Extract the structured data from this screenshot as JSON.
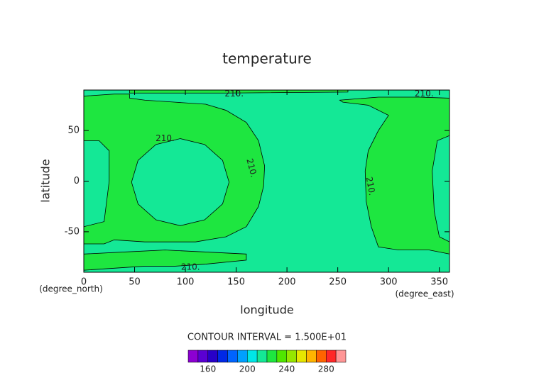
{
  "chart_data": {
    "type": "contour",
    "title": "temperature",
    "x_label": "longitude",
    "y_label": "latitude",
    "x_units": "(degree_east)",
    "y_units": "(degree_north)",
    "xlim": [
      0,
      360
    ],
    "ylim": [
      -90,
      90
    ],
    "xticks": [
      0,
      50,
      100,
      150,
      200,
      250,
      300,
      350
    ],
    "yticks": [
      -50,
      0,
      50
    ],
    "background_color": "#14e896",
    "contour_level": {
      "value": 210,
      "label": "210."
    },
    "regions": [
      {
        "color": "#1ee640",
        "lon": [
          0,
          30,
          45,
          45,
          60,
          90,
          120,
          140,
          160,
          172,
          178,
          177,
          172,
          160,
          140,
          110,
          60,
          30,
          20,
          0,
          0,
          20,
          25,
          25,
          15,
          0
        ],
        "lat": [
          84,
          86,
          86,
          82,
          80,
          78,
          76,
          70,
          58,
          40,
          15,
          -5,
          -25,
          -45,
          -55,
          -60,
          -60,
          -58,
          -62,
          -62,
          -45,
          -40,
          0,
          30,
          40,
          40
        ]
      },
      {
        "color": "#1ee640",
        "lon": [
          0,
          40,
          80,
          120,
          160,
          160,
          120,
          90,
          60,
          30,
          0
        ],
        "lat": [
          -72,
          -70,
          -68,
          -70,
          -72,
          -78,
          -82,
          -84,
          -84,
          -86,
          -88
        ]
      },
      {
        "color": "#1ee640",
        "lon": [
          45,
          260,
          260,
          140,
          45
        ],
        "lat": [
          90,
          90,
          88,
          87,
          87
        ]
      },
      {
        "color": "#14e896",
        "lon": [
          143,
          136.6,
          119,
          95,
          71,
          53.4,
          47,
          53.4,
          71,
          95,
          119,
          136.6
        ],
        "lat": [
          -1,
          20.5,
          36.2,
          42,
          36.2,
          20.5,
          -1,
          -22.5,
          -38.2,
          -44,
          -38.2,
          -22.5
        ]
      },
      {
        "color": "#1ee640",
        "lon": [
          252,
          290,
          330,
          360,
          360,
          348,
          343,
          345,
          350,
          360,
          360,
          340,
          310,
          290,
          283,
          278,
          277,
          280,
          290,
          300,
          280,
          255
        ],
        "lat": [
          80,
          83,
          83,
          82,
          45,
          40,
          10,
          -30,
          -55,
          -60,
          -72,
          -68,
          -68,
          -65,
          -45,
          -20,
          10,
          30,
          50,
          65,
          75,
          78
        ]
      }
    ],
    "contour_interval": "CONTOUR INTERVAL = 1.500E+01",
    "colorbar": {
      "levels": [
        140,
        150,
        160,
        170,
        180,
        190,
        200,
        210,
        220,
        230,
        240,
        250,
        260,
        270,
        280,
        290,
        300
      ],
      "colors": [
        "#8c00d2",
        "#5a00d2",
        "#2800c8",
        "#0028e6",
        "#0064ff",
        "#00a0ff",
        "#00e6e6",
        "#14e896",
        "#1ee640",
        "#50e600",
        "#96e600",
        "#e6e600",
        "#ffb400",
        "#ff6400",
        "#ff2828",
        "#ff9696"
      ],
      "ticks": [
        160,
        200,
        240,
        280
      ]
    }
  }
}
